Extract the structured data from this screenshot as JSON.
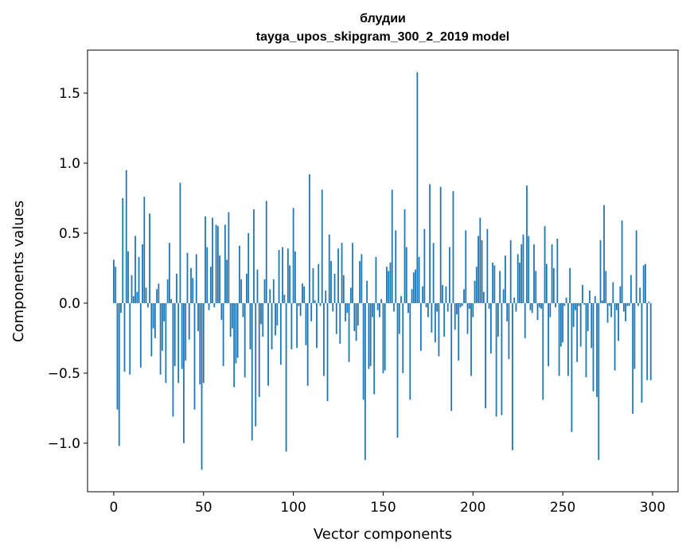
{
  "chart_data": {
    "type": "bar",
    "title": "блудии",
    "subtitle": "tayga_upos_skipgram_300_2_2019 model",
    "xlabel": "Vector components",
    "ylabel": "Components values",
    "xlim": [
      -14.6,
      314.2
    ],
    "ylim": [
      -1.347,
      1.807
    ],
    "xticks": [
      0,
      50,
      100,
      150,
      200,
      250,
      300
    ],
    "xtick_labels": [
      "0",
      "50",
      "100",
      "150",
      "200",
      "250",
      "300"
    ],
    "yticks": [
      -1.0,
      -0.5,
      0.0,
      0.5,
      1.0,
      1.5
    ],
    "ytick_labels": [
      "−1.0",
      "−0.5",
      "0.0",
      "0.5",
      "1.0",
      "1.5"
    ],
    "grid": false,
    "color": "#1f77b4",
    "values": [
      0.31,
      0.26,
      -0.76,
      -1.02,
      -0.07,
      0.75,
      -0.49,
      0.95,
      0.37,
      -0.51,
      0.2,
      0.05,
      0.48,
      0.08,
      0.33,
      -0.46,
      0.42,
      0.76,
      0.11,
      -0.03,
      0.64,
      -0.38,
      -0.18,
      -0.25,
      0.1,
      0.14,
      -0.51,
      -0.34,
      -0.13,
      -0.57,
      0.17,
      0.43,
      0.03,
      -0.81,
      -0.45,
      0.21,
      -0.57,
      0.86,
      -0.47,
      -1.0,
      -0.41,
      0.36,
      -0.26,
      0.25,
      0.18,
      -0.76,
      0.35,
      -0.2,
      -0.58,
      -1.19,
      -0.57,
      0.62,
      0.4,
      -0.05,
      0.26,
      0.61,
      -0.03,
      0.56,
      0.55,
      0.34,
      -0.12,
      -0.45,
      0.56,
      0.31,
      0.65,
      -0.24,
      -0.18,
      -0.6,
      -0.43,
      -0.39,
      0.41,
      0.17,
      -0.1,
      -0.53,
      0.21,
      0.5,
      -0.33,
      -0.98,
      0.67,
      -0.88,
      0.24,
      -0.67,
      -0.15,
      -0.24,
      0.17,
      0.73,
      -0.59,
      0.1,
      -0.33,
      0.17,
      -0.23,
      -0.16,
      0.38,
      -0.44,
      0.4,
      0.06,
      -1.06,
      0.39,
      0.27,
      -0.33,
      0.68,
      0.37,
      -0.32,
      -0.02,
      -0.09,
      0.14,
      0.12,
      -0.3,
      -0.59,
      0.92,
      -0.13,
      0.25,
      0.02,
      -0.32,
      0.28,
      -0.02,
      0.81,
      -0.52,
      0.09,
      -0.7,
      0.49,
      0.3,
      -0.06,
      0.21,
      -0.22,
      0.39,
      -0.29,
      0.43,
      0.2,
      -0.13,
      -0.07,
      -0.42,
      0.11,
      0.43,
      -0.2,
      -0.27,
      -0.16,
      0.3,
      0.35,
      -0.69,
      -1.12,
      0.16,
      -0.47,
      -0.45,
      -0.1,
      -0.65,
      0.33,
      -0.05,
      -0.1,
      0.03,
      -0.5,
      -0.48,
      0.26,
      0.23,
      0.29,
      0.81,
      -0.06,
      0.52,
      -0.96,
      -0.22,
      0.05,
      -0.5,
      0.67,
      0.4,
      -0.07,
      -0.69,
      0.1,
      0.22,
      0.24,
      1.65,
      0.33,
      -0.34,
      0.12,
      0.53,
      -0.03,
      -0.1,
      0.85,
      -0.21,
      0.43,
      -0.28,
      -0.06,
      -0.38,
      0.83,
      0.13,
      -0.24,
      0.12,
      -0.06,
      0.4,
      -0.77,
      0.8,
      -0.19,
      -0.08,
      -0.41,
      -0.03,
      -0.02,
      0.1,
      0.52,
      -0.22,
      -0.04,
      -0.52,
      -0.1,
      0.16,
      0.26,
      0.48,
      0.61,
      0.45,
      0.08,
      -0.75,
      0.53,
      -0.04,
      -0.36,
      0.29,
      0.27,
      -0.81,
      -0.24,
      0.23,
      -0.8,
      0.1,
      0.34,
      -0.13,
      -0.4,
      0.45,
      -1.05,
      0.04,
      -0.06,
      0.35,
      0.29,
      0.42,
      0.49,
      -0.25,
      0.84,
      0.48,
      -0.05,
      -0.07,
      0.42,
      0.23,
      -0.12,
      -0.03,
      -0.04,
      -0.69,
      0.55,
      0.28,
      -0.45,
      -0.1,
      0.42,
      0.25,
      -0.03,
      0.46,
      -0.52,
      -0.31,
      -0.28,
      -0.02,
      0.04,
      -0.52,
      0.25,
      -0.92,
      -0.17,
      -0.05,
      -0.42,
      -0.02,
      -0.31,
      0.13,
      -0.01,
      -0.53,
      -0.2,
      0.09,
      -0.32,
      -0.63,
      0.05,
      -0.67,
      -1.12,
      0.45,
      0.02,
      0.7,
      0.23,
      -0.14,
      -0.02,
      -0.1,
      0.15,
      -0.48,
      -0.05,
      -0.27,
      0.12,
      0.59,
      -0.06,
      -0.13,
      -0.02,
      -0.02,
      0.2,
      -0.79,
      -0.47,
      0.52,
      -0.02,
      0.11,
      -0.71,
      0.27,
      0.28,
      -0.55,
      0.01,
      -0.55
    ]
  }
}
